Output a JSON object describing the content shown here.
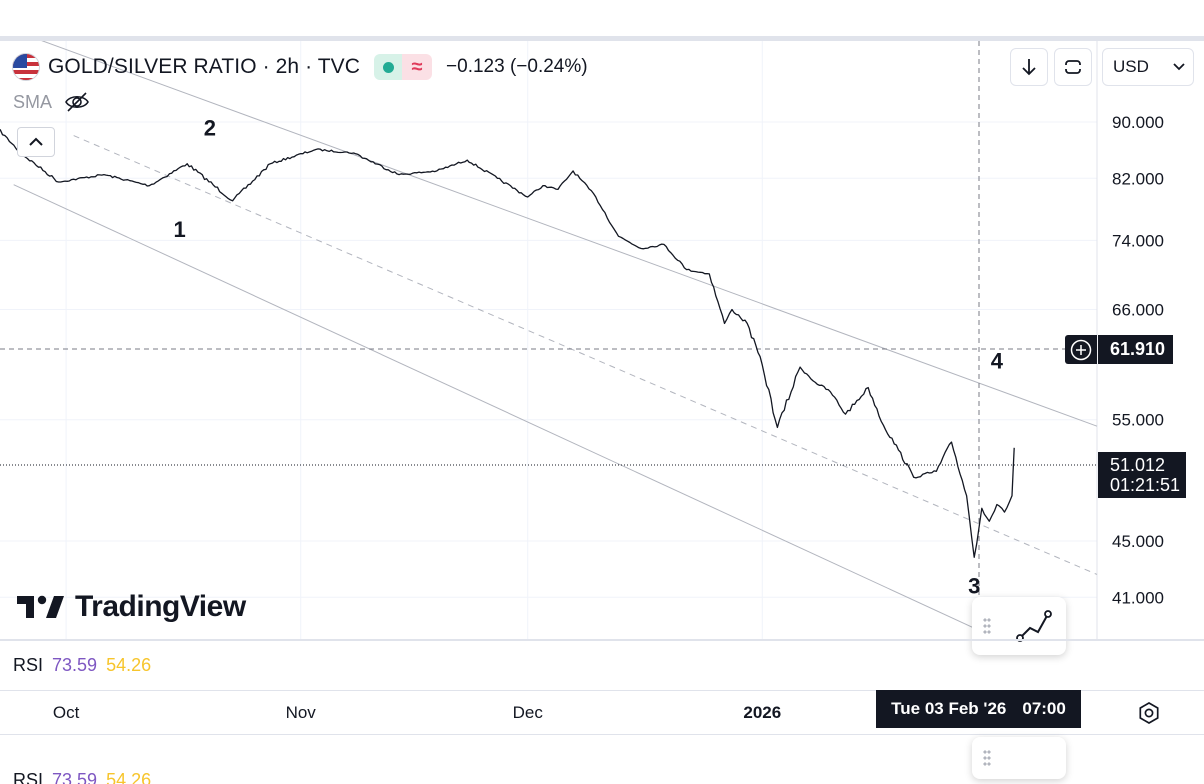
{
  "header": {
    "symbol_title": "GOLD/SILVER RATIO · 2h · TVC",
    "change": "−0.123 (−0.24%)",
    "status_icon": "green-dot",
    "approx_icon": "≈",
    "flag_icon": "us-flag-icon",
    "indicator": "SMA"
  },
  "toolbar": {
    "currency": "USD",
    "download_icon": "arrow-down-icon",
    "fullscreen_icon": "fullscreen-icon"
  },
  "price_labels": {
    "crosshair_price": "61.910",
    "last_price": "51.012",
    "countdown": "01:21:51"
  },
  "rsi": {
    "label": "RSI",
    "value1": "73.59",
    "value2": "54.26"
  },
  "time_axis": {
    "crosshair_date": "Tue 03 Feb '26",
    "crosshair_time": "07:00"
  },
  "logo_text": "TradingView",
  "colors": {
    "line": "#131722",
    "channel": "#b2b5be",
    "rsi_primary": "#7e57c2",
    "rsi_secondary": "#f7c52c",
    "tag_bg": "#131722"
  },
  "chart_data": {
    "type": "line",
    "y_scale": "log",
    "ylim": [
      38.5,
      100
    ],
    "y_ticks": [
      "90.000",
      "82.000",
      "74.000",
      "66.000",
      "55.000",
      "45.000",
      "41.000"
    ],
    "x_ticks": [
      "Oct",
      "Nov",
      "Dec",
      "2026"
    ],
    "x_range": [
      "2025-09-22",
      "2026-02-10"
    ],
    "crosshair": {
      "x": "2026-02-03T07:00",
      "y": 61.91
    },
    "last_value": 51.012,
    "series": [
      {
        "x": [
          "2025-09-22",
          "2025-09-25",
          "2025-09-30",
          "2025-10-06",
          "2025-10-12",
          "2025-10-17",
          "2025-10-23",
          "2025-10-28",
          "2025-11-03",
          "2025-11-08",
          "2025-11-14",
          "2025-11-19",
          "2025-11-23",
          "2025-11-27",
          "2025-12-01",
          "2025-12-03",
          "2025-12-05",
          "2025-12-07",
          "2025-12-10",
          "2025-12-13",
          "2025-12-16",
          "2025-12-19",
          "2025-12-22",
          "2025-12-25",
          "2025-12-27",
          "2025-12-28",
          "2025-12-30",
          "2026-01-01",
          "2026-01-03",
          "2026-01-06",
          "2026-01-08",
          "2026-01-10",
          "2026-01-12",
          "2026-01-15",
          "2026-01-17",
          "2026-01-19",
          "2026-01-21",
          "2026-01-24",
          "2026-01-26",
          "2026-01-28",
          "2026-01-29",
          "2026-01-30",
          "2026-01-31",
          "2026-02-01",
          "2026-02-02",
          "2026-02-03",
          "2026-02-03T07:00"
        ],
        "values": [
          89.0,
          85.5,
          81.5,
          82.5,
          81.0,
          84.0,
          79.0,
          84.0,
          86.0,
          85.5,
          82.5,
          83.0,
          84.5,
          82.0,
          79.5,
          81.0,
          80.5,
          83.0,
          79.5,
          74.5,
          73.0,
          73.5,
          70.5,
          70.0,
          64.5,
          66.0,
          64.5,
          60.2,
          54.3,
          60.0,
          58.5,
          57.6,
          55.5,
          58.0,
          54.5,
          52.3,
          50.0,
          50.5,
          53.0,
          48.5,
          43.8,
          47.5,
          46.5,
          47.8,
          47.2,
          48.5,
          52.5
        ]
      }
    ],
    "channel": {
      "upper": [
        {
          "x": "2025-10-02",
          "y": 101.0
        },
        {
          "x": "2026-02-06",
          "y": 56.5
        }
      ],
      "mid": [
        {
          "x": "2025-10-02",
          "y": 88.0
        },
        {
          "x": "2026-02-06",
          "y": 44.5
        }
      ],
      "lower": [
        {
          "x": "2025-10-02",
          "y": 77.5
        },
        {
          "x": "2026-02-06",
          "y": 37.2
        }
      ]
    },
    "wave_labels": [
      {
        "text": "1",
        "x": "2025-10-16",
        "y": 79.0
      },
      {
        "text": "2",
        "x": "2025-10-20",
        "y": 86.0
      },
      {
        "text": "3",
        "x": "2026-01-29",
        "y": 43.8
      },
      {
        "text": "4",
        "x": "2026-02-01",
        "y": 58.5
      }
    ]
  }
}
